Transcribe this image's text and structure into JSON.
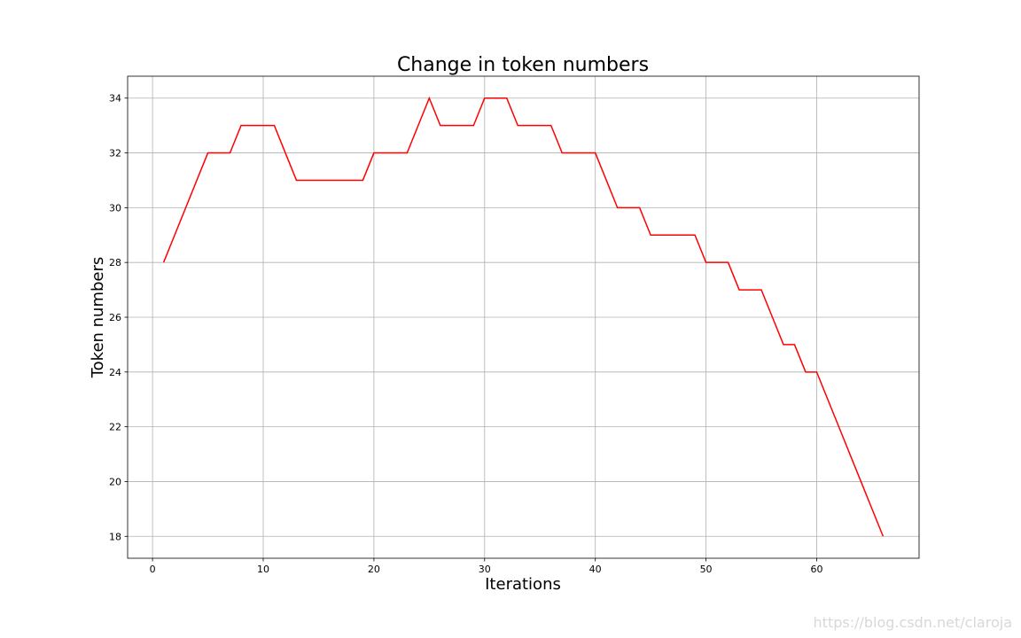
{
  "chart_data": {
    "type": "line",
    "title": "Change in token numbers",
    "xlabel": "Iterations",
    "ylabel": "Token numbers",
    "x": [
      1,
      2,
      3,
      4,
      5,
      6,
      7,
      8,
      9,
      10,
      11,
      12,
      13,
      14,
      15,
      16,
      17,
      18,
      19,
      20,
      21,
      22,
      23,
      24,
      25,
      26,
      27,
      28,
      29,
      30,
      31,
      32,
      33,
      34,
      35,
      36,
      37,
      38,
      39,
      40,
      41,
      42,
      43,
      44,
      45,
      46,
      47,
      48,
      49,
      50,
      51,
      52,
      53,
      54,
      55,
      56,
      57,
      58,
      59,
      60,
      61,
      62,
      63,
      64,
      65,
      66
    ],
    "series": [
      {
        "name": "Token numbers",
        "color": "#ff0000",
        "values": [
          28,
          29,
          30,
          31,
          32,
          32,
          32,
          33,
          33,
          33,
          33,
          32,
          31,
          31,
          31,
          31,
          31,
          31,
          31,
          32,
          32,
          32,
          32,
          33,
          34,
          33,
          33,
          33,
          33,
          34,
          34,
          34,
          33,
          33,
          33,
          33,
          32,
          32,
          32,
          32,
          31,
          30,
          30,
          30,
          29,
          29,
          29,
          29,
          29,
          28,
          28,
          28,
          27,
          27,
          27,
          26,
          25,
          25,
          24,
          24,
          23,
          22,
          21,
          20,
          19,
          18
        ]
      }
    ],
    "xlim": [
      -2.25,
      69.25
    ],
    "xticks": [
      0,
      10,
      20,
      30,
      40,
      50,
      60
    ],
    "ylim": [
      17.2,
      34.8
    ],
    "yticks": [
      18,
      20,
      22,
      24,
      26,
      28,
      30,
      32,
      34
    ],
    "grid": true
  },
  "watermark": "https://blog.csdn.net/claroja"
}
